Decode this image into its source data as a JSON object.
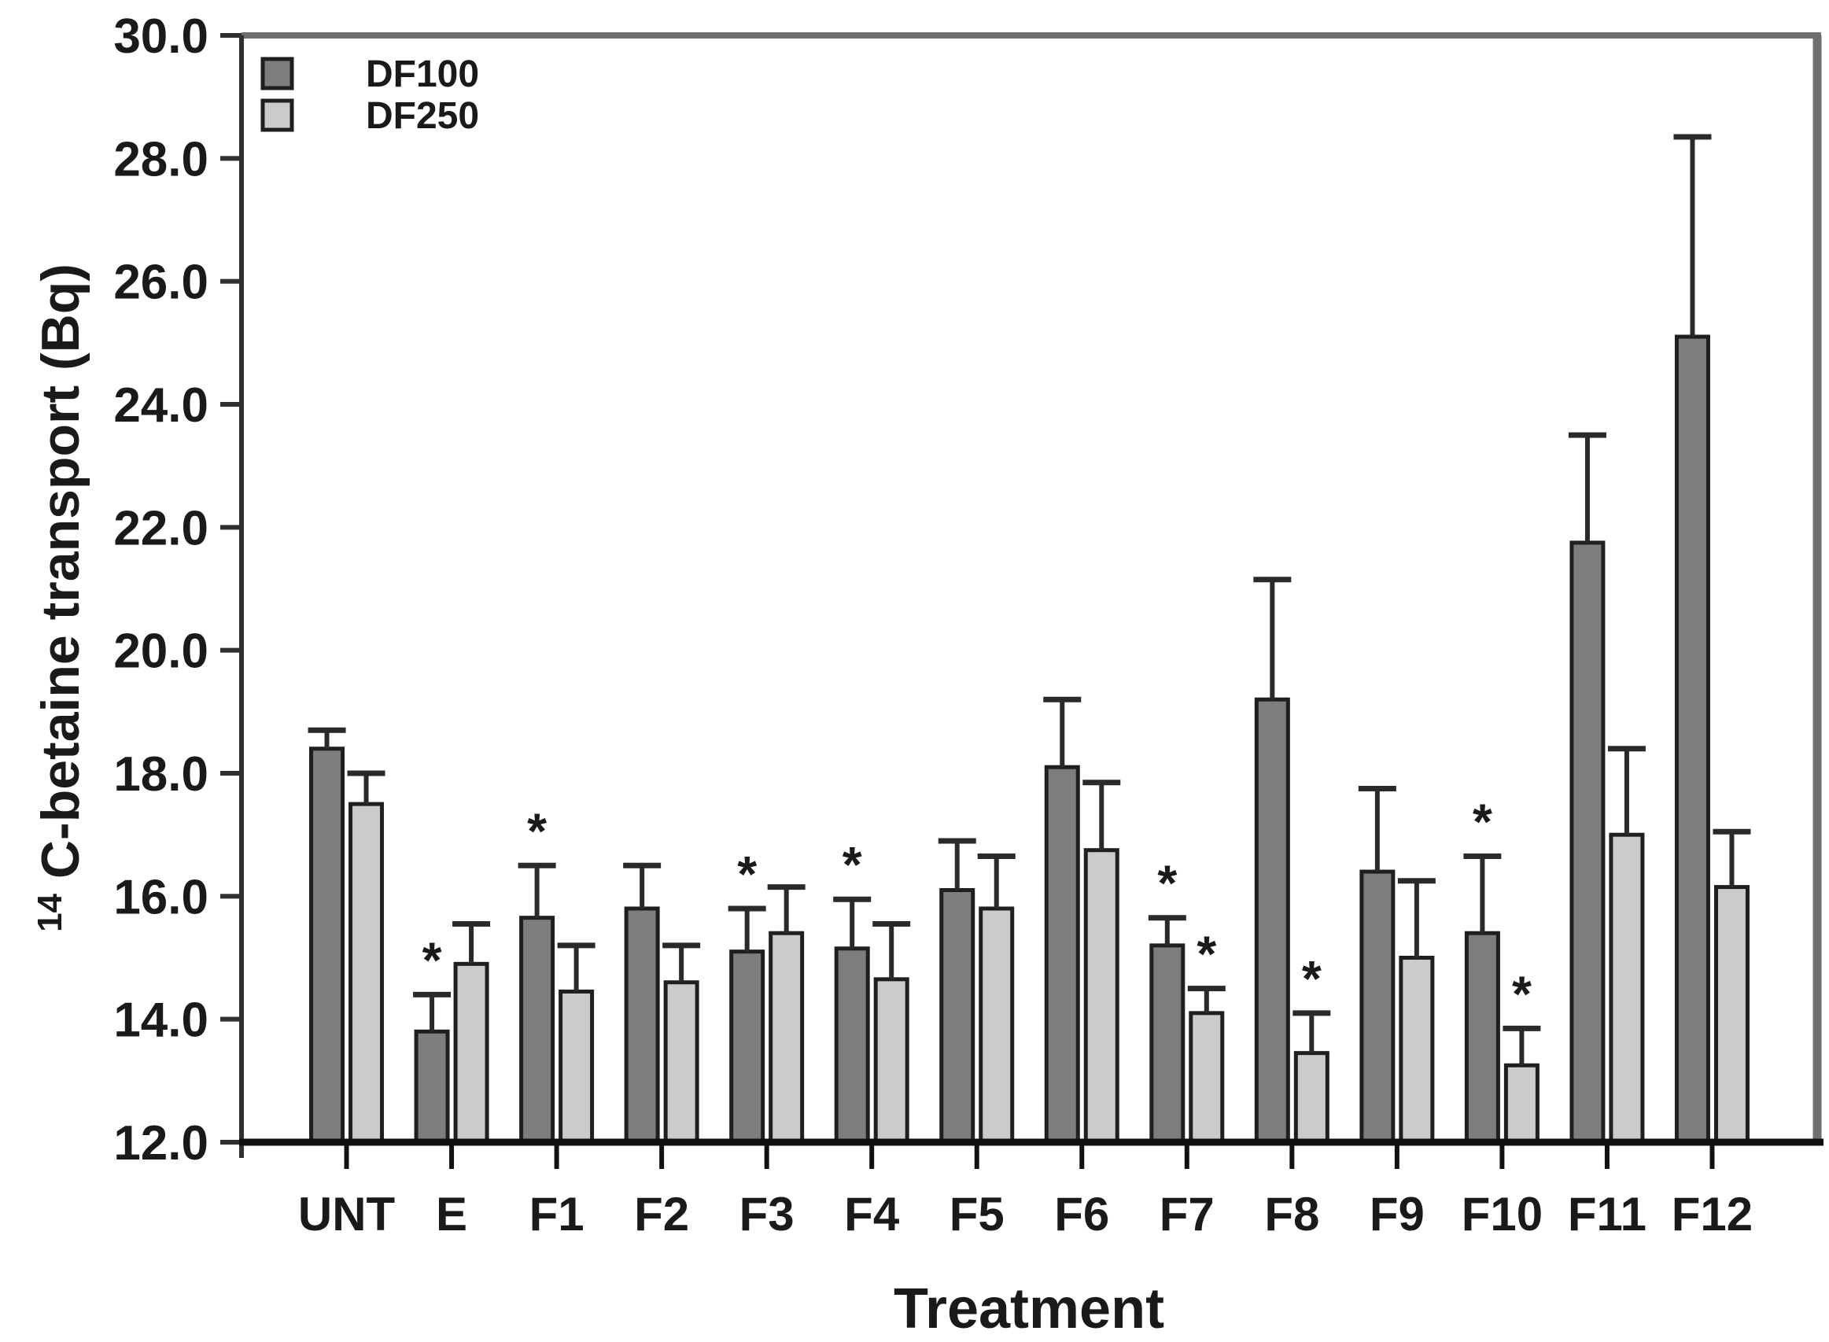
{
  "chart_data": {
    "type": "bar",
    "title": "",
    "xlabel": "Treatment",
    "ylabel_superscript": "14",
    "ylabel_text": "C-betaine transport (Bq)",
    "categories": [
      "UNT",
      "E",
      "F1",
      "F2",
      "F3",
      "F4",
      "F5",
      "F6",
      "F7",
      "F8",
      "F9",
      "F10",
      "F11",
      "F12"
    ],
    "ylim": [
      12.0,
      30.0
    ],
    "ytick_step": 2.0,
    "ytick_labels": [
      "12.0",
      "14.0",
      "16.0",
      "18.0",
      "20.0",
      "22.0",
      "24.0",
      "26.0",
      "28.0",
      "30.0"
    ],
    "grid": false,
    "sig_marker": "*",
    "legend": {
      "position": "top-left-inside"
    },
    "series": [
      {
        "name": "DF100",
        "color": "#7d7d7d",
        "values": [
          18.4,
          13.8,
          15.65,
          15.8,
          15.1,
          15.15,
          16.1,
          18.1,
          15.2,
          19.2,
          16.4,
          15.4,
          21.75,
          25.1
        ],
        "errors_up": [
          0.3,
          0.6,
          0.85,
          0.7,
          0.7,
          0.8,
          0.8,
          1.1,
          0.45,
          1.95,
          1.35,
          1.25,
          1.75,
          3.25
        ],
        "significant": [
          false,
          true,
          true,
          false,
          true,
          true,
          false,
          false,
          true,
          false,
          false,
          true,
          false,
          false
        ]
      },
      {
        "name": "DF250",
        "color": "#cbcbcb",
        "values": [
          17.5,
          14.9,
          14.45,
          14.6,
          15.4,
          14.65,
          15.8,
          16.75,
          14.1,
          13.45,
          15.0,
          13.25,
          17.0,
          16.15
        ],
        "errors_up": [
          0.5,
          0.65,
          0.75,
          0.6,
          0.75,
          0.9,
          0.85,
          1.1,
          0.4,
          0.65,
          1.25,
          0.6,
          1.4,
          0.9
        ],
        "significant": [
          false,
          false,
          false,
          false,
          false,
          false,
          false,
          false,
          true,
          true,
          false,
          true,
          false,
          false
        ]
      }
    ],
    "colors": {
      "bar_border": "#1f1f1f",
      "error_bar": "#2a2a2a",
      "axis_dark": "#111111",
      "axis_left": "#2f2f2f",
      "frame_gray": "#6f6f6f",
      "text": "#1a1a1a",
      "background": "#ffffff"
    }
  }
}
